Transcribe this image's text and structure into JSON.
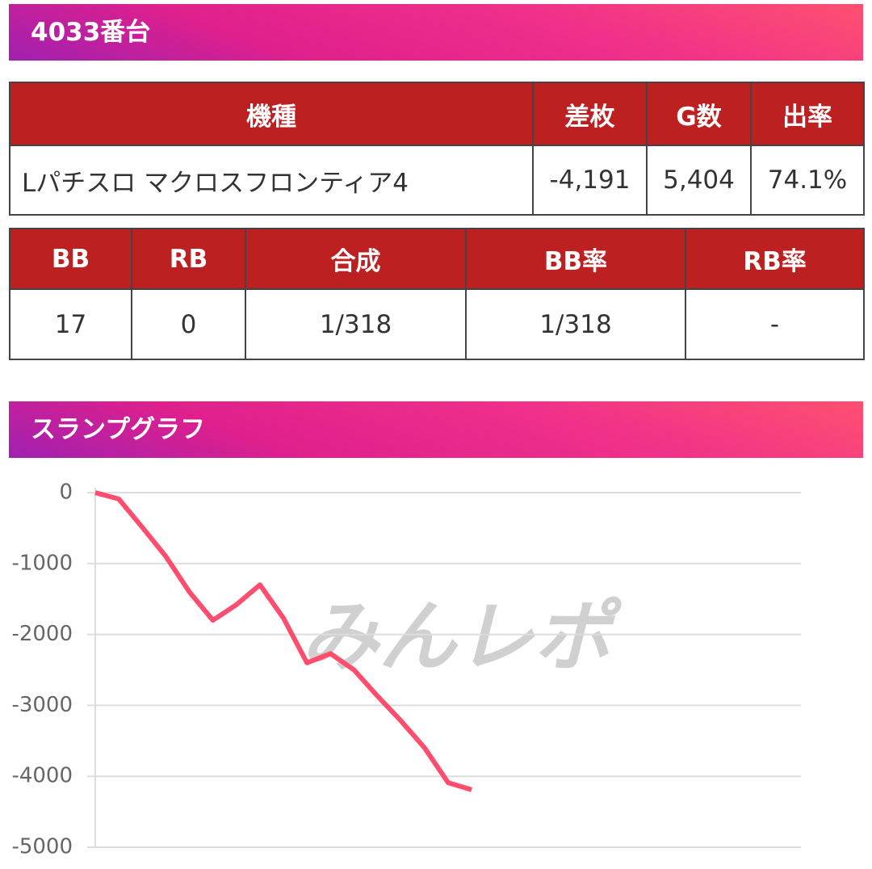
{
  "header": {
    "title": "4033番台"
  },
  "machine_table": {
    "headers": [
      "機種",
      "差枚",
      "G数",
      "出率"
    ],
    "rows": [
      [
        "Lパチスロ マクロスフロンティア4",
        "-4,191",
        "5,404",
        "74.1%"
      ]
    ]
  },
  "bonus_table": {
    "headers": [
      "BB",
      "RB",
      "合成",
      "BB率",
      "RB率"
    ],
    "rows": [
      [
        "17",
        "0",
        "1/318",
        "1/318",
        "-"
      ]
    ]
  },
  "graph_section": {
    "title": "スランプグラフ"
  },
  "chart_data": {
    "type": "line",
    "watermark": "みんレポ",
    "ylim": [
      -5000,
      0
    ],
    "yticks": [
      0,
      -1000,
      -2000,
      -3000,
      -4000,
      -5000
    ],
    "grid": true,
    "series": [
      {
        "color": "#ff4d6d",
        "values": [
          0,
          -90,
          -490,
          -900,
          -1400,
          -1800,
          -1580,
          -1300,
          -1770,
          -2400,
          -2270,
          -2500,
          -2870,
          -3220,
          -3600,
          -4090,
          -4190
        ]
      }
    ]
  }
}
